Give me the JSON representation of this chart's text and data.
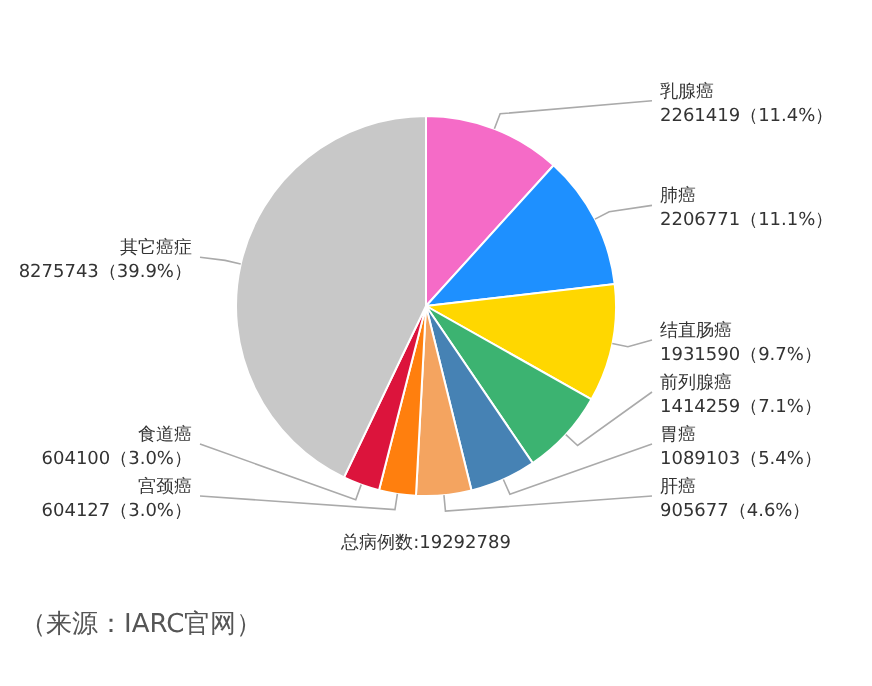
{
  "chart_data": {
    "type": "pie",
    "categories": [
      "乳腺癌",
      "肺癌",
      "结直肠癌",
      "前列腺癌",
      "胃癌",
      "肝癌",
      "宫颈癌",
      "食道癌",
      "其它癌症"
    ],
    "values": [
      2261419,
      2206771,
      1931590,
      1414259,
      1089103,
      905677,
      604127,
      604100,
      8275743
    ],
    "value_labels": [
      "2261419（11.4%）",
      "2206771（11.1%）",
      "1931590（9.7%）",
      "1414259（7.1%）",
      "1089103（5.4%）",
      "905677（4.6%）",
      "604127（3.0%）",
      "604100（3.0%）",
      "8275743（39.9%）"
    ],
    "colors": [
      "#f56bc7",
      "#1e90ff",
      "#ffd700",
      "#3cb371",
      "#4682b4",
      "#f4a460",
      "#ff7f0e",
      "#dc143c",
      "#c8c8c8"
    ],
    "annotations": [
      "总病例数:19292789",
      "（来源：IARC官网）"
    ]
  }
}
